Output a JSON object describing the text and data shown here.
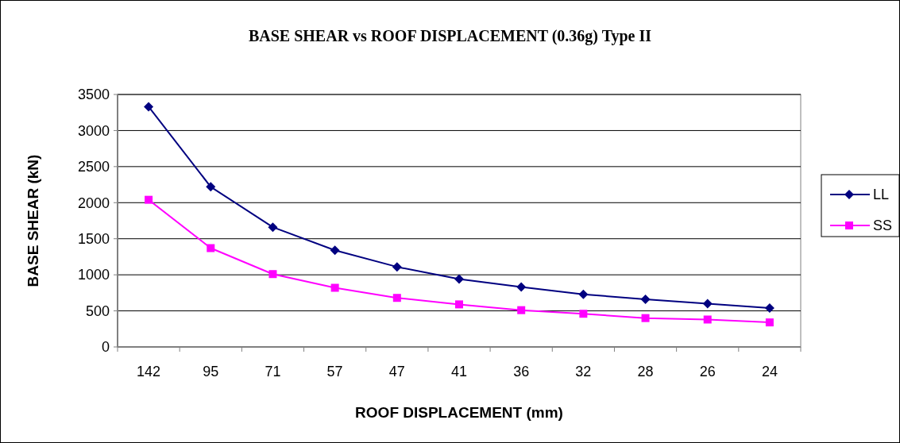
{
  "chart_data": {
    "type": "line",
    "title": "BASE SHEAR vs ROOF DISPLACEMENT (0.36g) Type II",
    "xlabel": "ROOF DISPLACEMENT (mm)",
    "ylabel": "BASE SHEAR (kN)",
    "categories": [
      "142",
      "95",
      "71",
      "57",
      "47",
      "41",
      "36",
      "32",
      "28",
      "26",
      "24"
    ],
    "series": [
      {
        "name": "LL",
        "color": "#000080",
        "marker": "diamond",
        "values": [
          3330,
          2220,
          1660,
          1340,
          1110,
          940,
          830,
          730,
          660,
          600,
          540
        ]
      },
      {
        "name": "SS",
        "color": "#ff00ff",
        "marker": "square",
        "values": [
          2040,
          1370,
          1010,
          820,
          680,
          590,
          510,
          460,
          400,
          380,
          340
        ]
      }
    ],
    "ylim": [
      0,
      3500
    ],
    "yticks": [
      0,
      500,
      1000,
      1500,
      2000,
      2500,
      3000,
      3500
    ],
    "grid": "y",
    "legend": "right",
    "line_style": "solid"
  }
}
